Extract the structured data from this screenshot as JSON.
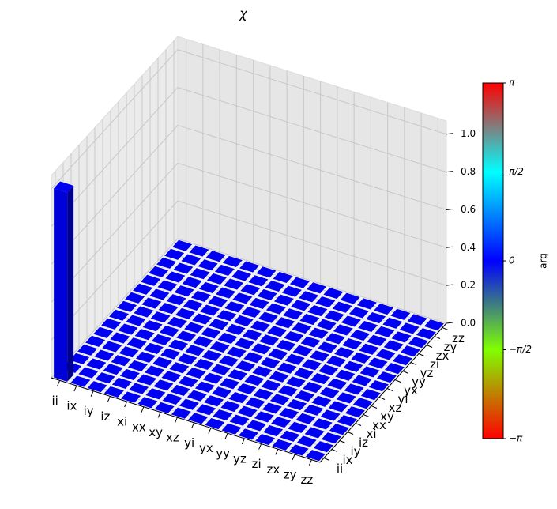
{
  "chart_data": {
    "type": "bar3d",
    "title": "χ",
    "x_categories": [
      "ii",
      "ix",
      "iy",
      "iz",
      "xi",
      "xx",
      "xy",
      "xz",
      "yi",
      "yx",
      "yy",
      "yz",
      "zi",
      "zx",
      "zy",
      "zz"
    ],
    "y_categories": [
      "ii",
      "ix",
      "iy",
      "iz",
      "xi",
      "xx",
      "xy",
      "xz",
      "yi",
      "yx",
      "yy",
      "yz",
      "zi",
      "zx",
      "zy",
      "zz"
    ],
    "values": [
      [
        1,
        0,
        0,
        0,
        0,
        0,
        0,
        0,
        0,
        0,
        0,
        0,
        0,
        0,
        0,
        0
      ],
      [
        0,
        0,
        0,
        0,
        0,
        0,
        0,
        0,
        0,
        0,
        0,
        0,
        0,
        0,
        0,
        0
      ],
      [
        0,
        0,
        0,
        0,
        0,
        0,
        0,
        0,
        0,
        0,
        0,
        0,
        0,
        0,
        0,
        0
      ],
      [
        0,
        0,
        0,
        0,
        0,
        0,
        0,
        0,
        0,
        0,
        0,
        0,
        0,
        0,
        0,
        0
      ],
      [
        0,
        0,
        0,
        0,
        0,
        0,
        0,
        0,
        0,
        0,
        0,
        0,
        0,
        0,
        0,
        0
      ],
      [
        0,
        0,
        0,
        0,
        0,
        0,
        0,
        0,
        0,
        0,
        0,
        0,
        0,
        0,
        0,
        0
      ],
      [
        0,
        0,
        0,
        0,
        0,
        0,
        0,
        0,
        0,
        0,
        0,
        0,
        0,
        0,
        0,
        0
      ],
      [
        0,
        0,
        0,
        0,
        0,
        0,
        0,
        0,
        0,
        0,
        0,
        0,
        0,
        0,
        0,
        0
      ],
      [
        0,
        0,
        0,
        0,
        0,
        0,
        0,
        0,
        0,
        0,
        0,
        0,
        0,
        0,
        0,
        0
      ],
      [
        0,
        0,
        0,
        0,
        0,
        0,
        0,
        0,
        0,
        0,
        0,
        0,
        0,
        0,
        0,
        0
      ],
      [
        0,
        0,
        0,
        0,
        0,
        0,
        0,
        0,
        0,
        0,
        0,
        0,
        0,
        0,
        0,
        0
      ],
      [
        0,
        0,
        0,
        0,
        0,
        0,
        0,
        0,
        0,
        0,
        0,
        0,
        0,
        0,
        0,
        0
      ],
      [
        0,
        0,
        0,
        0,
        0,
        0,
        0,
        0,
        0,
        0,
        0,
        0,
        0,
        0,
        0,
        0
      ],
      [
        0,
        0,
        0,
        0,
        0,
        0,
        0,
        0,
        0,
        0,
        0,
        0,
        0,
        0,
        0,
        0
      ],
      [
        0,
        0,
        0,
        0,
        0,
        0,
        0,
        0,
        0,
        0,
        0,
        0,
        0,
        0,
        0,
        0
      ],
      [
        0,
        0,
        0,
        0,
        0,
        0,
        0,
        0,
        0,
        0,
        0,
        0,
        0,
        0,
        0,
        0
      ]
    ],
    "color": "#0000ff",
    "zlim": [
      0,
      1.07
    ],
    "zticks": [
      {
        "value": 0,
        "label": "0.0"
      },
      {
        "value": 0.2,
        "label": "0.2"
      },
      {
        "value": 0.4,
        "label": "0.4"
      },
      {
        "value": 0.6,
        "label": "0.6"
      },
      {
        "value": 0.8,
        "label": "0.8"
      },
      {
        "value": 1,
        "label": "1.0"
      }
    ],
    "colorbar_label": "arg",
    "colormap": [
      "#ff0000",
      "#80ff00",
      "#0000ff",
      "#00ffff",
      "#ff0000"
    ],
    "clim": [
      -3.14159,
      3.14159
    ],
    "cticks": [
      {
        "value": 3.14159,
        "label": "π"
      },
      {
        "value": 1.5708,
        "label": "π/2"
      },
      {
        "value": 0,
        "label": "0"
      },
      {
        "value": -1.5708,
        "label": "−π/2"
      },
      {
        "value": -3.14159,
        "label": "−π"
      }
    ],
    "grid": true
  }
}
